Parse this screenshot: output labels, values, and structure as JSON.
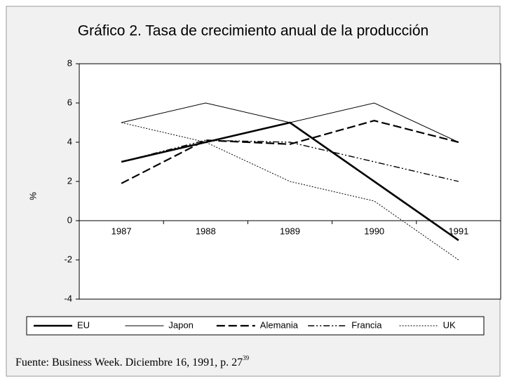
{
  "chart_data": {
    "type": "line",
    "title": "Gráfico 2. Tasa de crecimiento anual de la producción",
    "y_label": "%",
    "categories": [
      "1987",
      "1988",
      "1989",
      "1990",
      "1991"
    ],
    "series": [
      {
        "name": "EU",
        "color": "#000000",
        "linestyle": "solid-thick",
        "values": [
          3,
          4,
          5,
          2,
          -1
        ]
      },
      {
        "name": "Japon",
        "color": "#000000",
        "linestyle": "solid-thin",
        "values": [
          5,
          6,
          5,
          6,
          4
        ]
      },
      {
        "name": "Alemania",
        "color": "#000000",
        "linestyle": "dashed",
        "values": [
          1.9,
          4.1,
          3.9,
          5.1,
          4
        ]
      },
      {
        "name": "Francia",
        "color": "#000000",
        "linestyle": "dashdotdot",
        "values": [
          3,
          4.1,
          4,
          3,
          2
        ]
      },
      {
        "name": "UK",
        "color": "#000000",
        "linestyle": "dotted",
        "values": [
          5,
          4,
          2,
          1,
          -2
        ]
      }
    ],
    "ylim": [
      -4,
      8
    ],
    "yticks": [
      -4,
      -2,
      0,
      2,
      4,
      6,
      8
    ],
    "legend": "bottom",
    "source": "Fuente: Business Week. Diciembre 16, 1991, p. 27",
    "source_ref": "39"
  }
}
